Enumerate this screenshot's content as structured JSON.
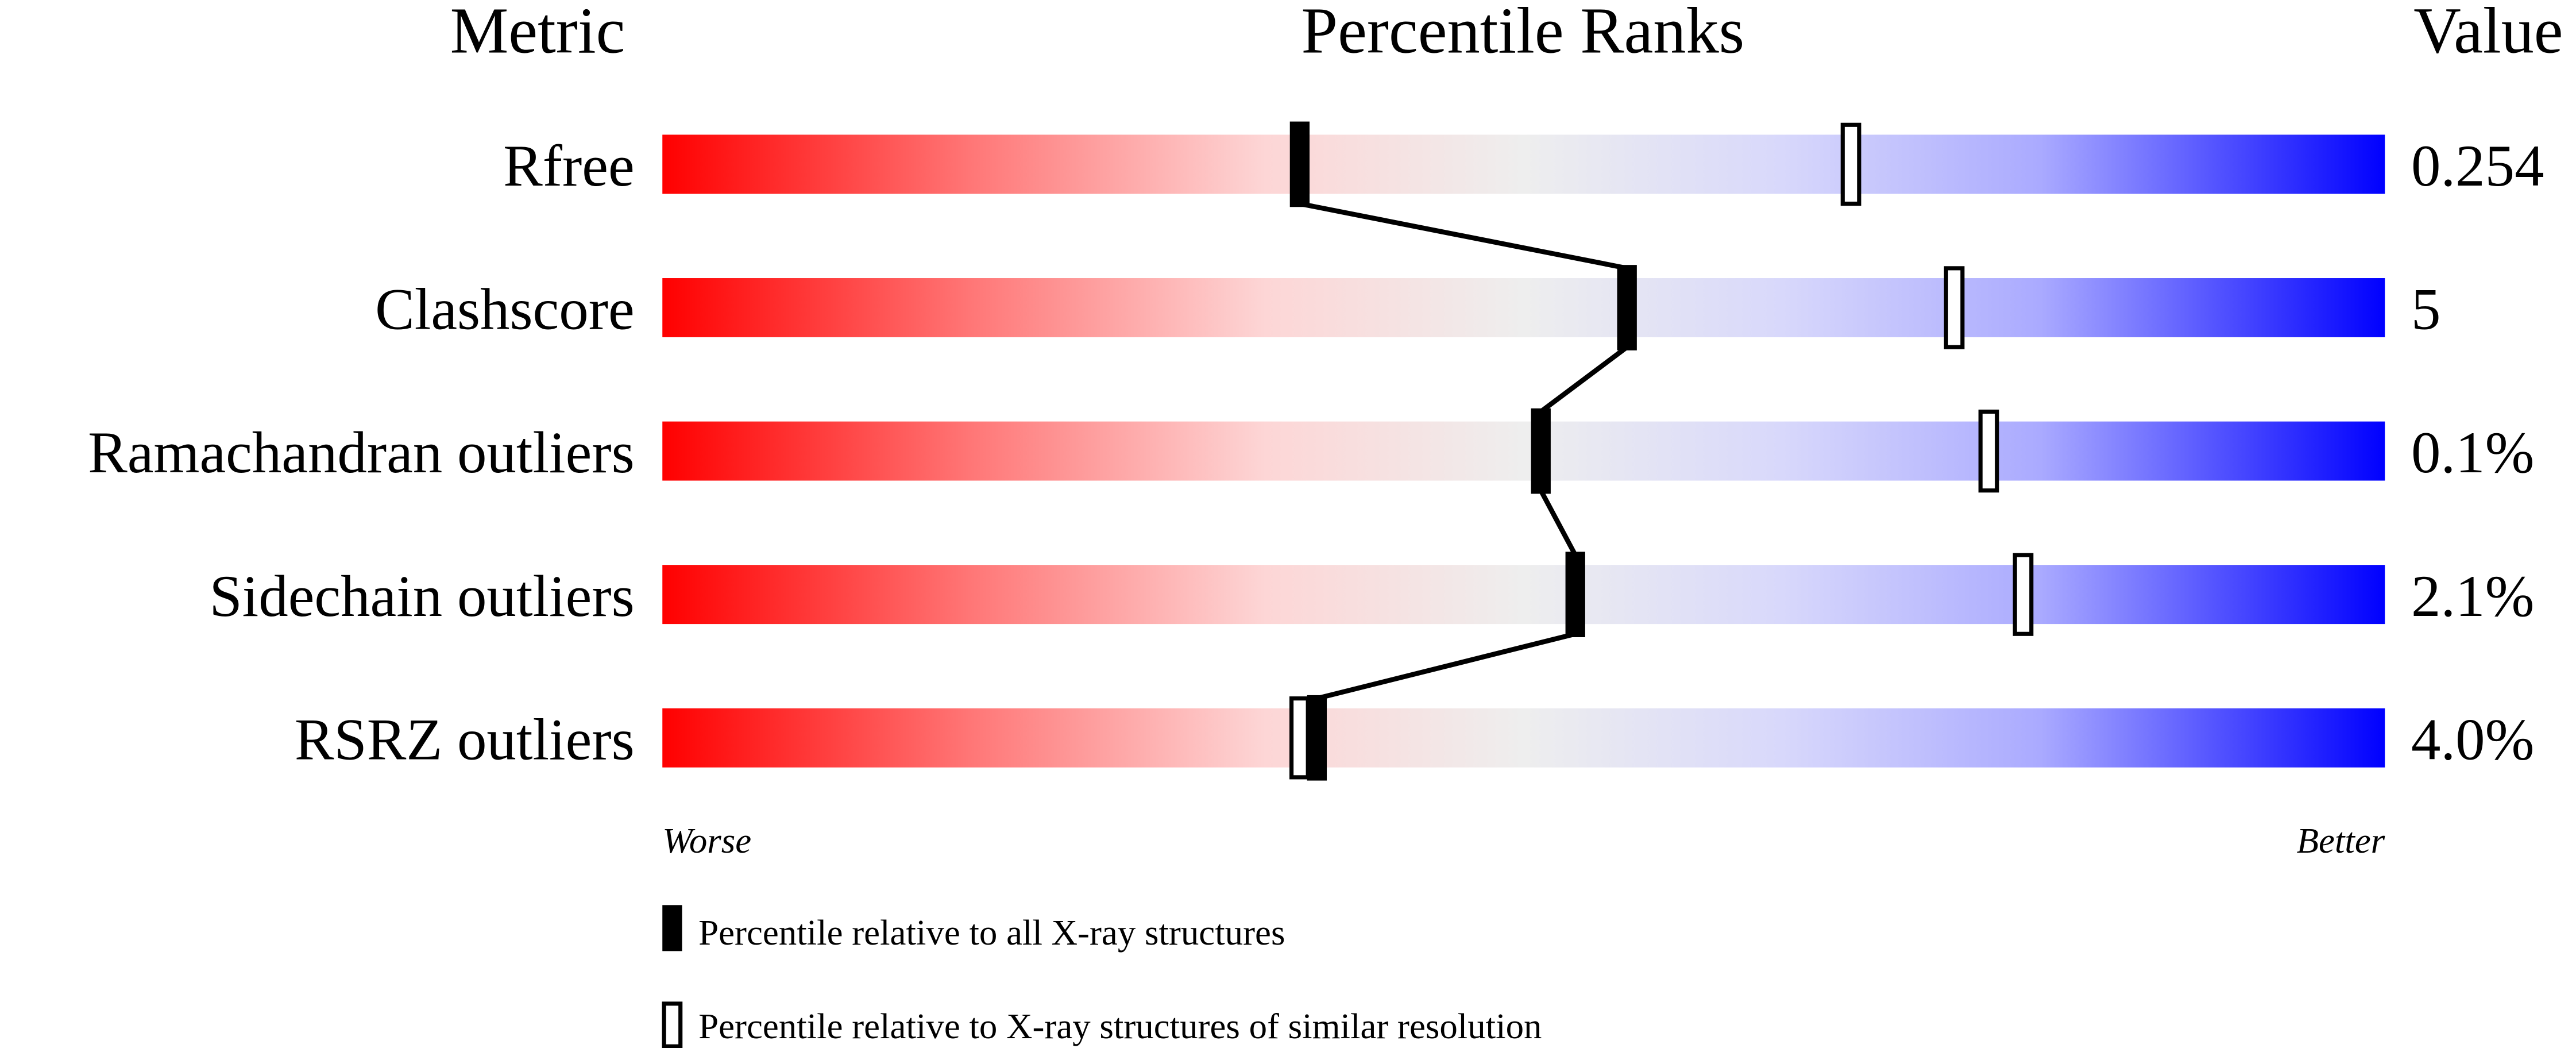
{
  "chart_data": {
    "type": "bar",
    "headers": {
      "metric": "Metric",
      "percentile": "Percentile Ranks",
      "value": "Value"
    },
    "xlim": [
      0,
      100
    ],
    "axis_labels": {
      "left": "Worse",
      "right": "Better"
    },
    "rows": [
      {
        "metric": "Rfree",
        "value": "0.254",
        "percentile_all": 37,
        "percentile_similar": 69
      },
      {
        "metric": "Clashscore",
        "value": "5",
        "percentile_all": 56,
        "percentile_similar": 75
      },
      {
        "metric": "Ramachandran outliers",
        "value": "0.1%",
        "percentile_all": 51,
        "percentile_similar": 77
      },
      {
        "metric": "Sidechain outliers",
        "value": "2.1%",
        "percentile_all": 53,
        "percentile_similar": 79
      },
      {
        "metric": "RSRZ outliers",
        "value": "4.0%",
        "percentile_all": 38,
        "percentile_similar": 37
      }
    ],
    "legend": [
      {
        "marker": "filled",
        "label": "Percentile relative to all X-ray structures"
      },
      {
        "marker": "open",
        "label": "Percentile relative to X-ray structures of similar resolution"
      }
    ],
    "colors": {
      "worse": "#ff0000",
      "middle": "#eeeeee",
      "better": "#0000ff"
    }
  }
}
